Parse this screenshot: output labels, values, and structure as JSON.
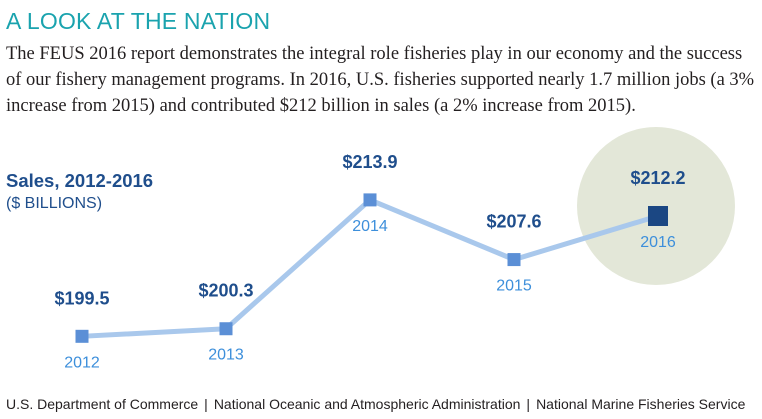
{
  "heading": "A LOOK AT THE NATION",
  "intro": "The FEUS 2016 report demonstrates the integral role fisheries play in our economy and the success of our fishery management programs. In 2016, U.S. fisheries supported nearly 1.7 million jobs (a 3% increase from 2015) and contributed $212 billion in sales (a 2% increase from 2015).",
  "chart_data": {
    "type": "line",
    "title": "Sales, 2012-2016",
    "ylabel": "($ BILLIONS)",
    "xlabel": "",
    "categories": [
      "2012",
      "2013",
      "2014",
      "2015",
      "2016"
    ],
    "values": [
      199.5,
      200.3,
      213.9,
      207.6,
      212.2
    ],
    "value_labels": [
      "$199.5",
      "$200.3",
      "$213.9",
      "$207.6",
      "$212.2"
    ],
    "highlight": "2016",
    "ylim": [
      197,
      216
    ],
    "grid": false,
    "line_color": "#a9c8ec",
    "marker_color": "#5b8fd6",
    "highlight_marker_color": "#1b4783",
    "highlight_circle_color": "#e3e7d8",
    "label_color": "#1f4e8c",
    "year_color": "#3d8fdb"
  },
  "footer": {
    "items": [
      "U.S. Department of Commerce",
      "National Oceanic and Atmospheric Administration",
      "National Marine Fisheries Service"
    ],
    "separator": "|"
  }
}
